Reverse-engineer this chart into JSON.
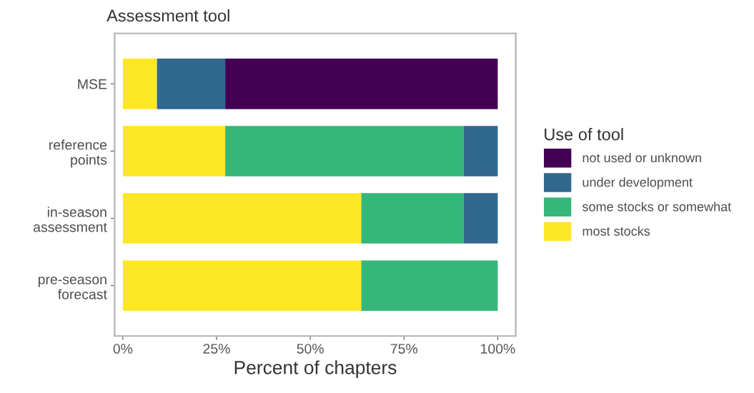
{
  "chart_data": {
    "type": "bar",
    "orientation": "horizontal",
    "stacked": true,
    "title": "Assessment tool",
    "xlabel": "Percent of chapters",
    "legend_title": "Use of tool",
    "legend": "right",
    "grid": false,
    "categories": [
      "MSE",
      "reference\npoints",
      "in-season\nassessment",
      "pre-season\nforecast"
    ],
    "series": [
      {
        "name": "most stocks",
        "color": "#fde725",
        "values": [
          9.1,
          27.3,
          63.6,
          63.6
        ]
      },
      {
        "name": "some stocks or somewhat",
        "color": "#35b779",
        "values": [
          0,
          63.6,
          27.3,
          36.4
        ]
      },
      {
        "name": "under development",
        "color": "#31688e",
        "values": [
          18.2,
          9.1,
          9.1,
          0
        ]
      },
      {
        "name": "not used or unknown",
        "color": "#440154",
        "values": [
          72.7,
          0,
          0,
          0
        ]
      }
    ],
    "xlim": [
      -2.2,
      104.8
    ],
    "xticks": [
      {
        "value": 0,
        "label": "0%"
      },
      {
        "value": 25,
        "label": "25%"
      },
      {
        "value": 50,
        "label": "50%"
      },
      {
        "value": 75,
        "label": "75%"
      },
      {
        "value": 100,
        "label": "100%"
      }
    ]
  }
}
